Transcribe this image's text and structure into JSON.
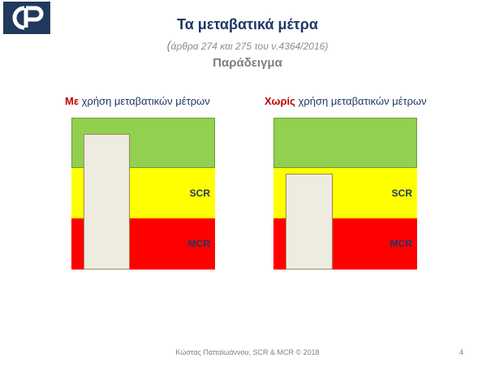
{
  "header": {
    "title": "Τα μεταβατικά μέτρα",
    "subtitle_paren_open": "(",
    "subtitle": "άρθρα 274 και 275 του ν.4364/2016)",
    "example": "Παράδειγμα"
  },
  "colors": {
    "green": "#92d050",
    "yellow": "#ffff00",
    "red": "#ff0000",
    "bar": "#eeece1",
    "title": "#1f3864",
    "emphasis": "#c00000"
  },
  "left_panel": {
    "heading_emph": "Με",
    "heading_rest": " χρήση μεταβατικών μέτρων",
    "scr_label": "SCR",
    "mcr_label": "MCR"
  },
  "right_panel": {
    "heading_emph": "Χωρίς",
    "heading_rest": " χρήση μεταβατικών μέτρων",
    "scr_label": "SCR",
    "mcr_label": "MCR"
  },
  "footer": {
    "text": "Κώστας Παπαϊωάννου, SCR & MCR © 2018",
    "page": "4"
  }
}
